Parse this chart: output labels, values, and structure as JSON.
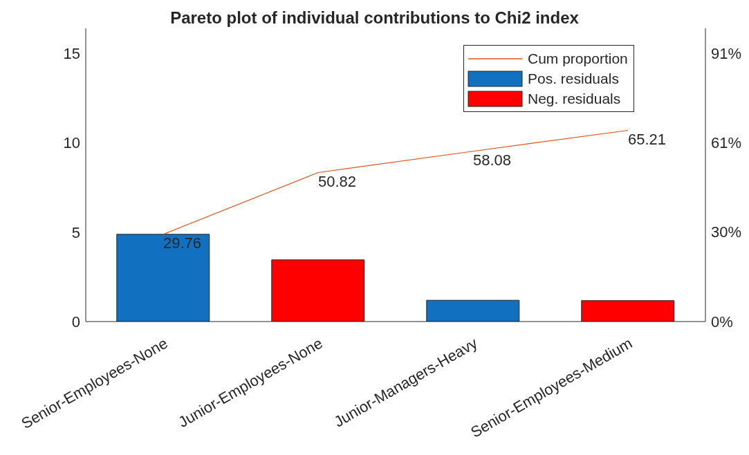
{
  "chart_data": {
    "type": "bar",
    "title": "Pareto plot of individual contributions to Chi2 index",
    "categories": [
      "Senior-Employees-None",
      "Junior-Employees-None",
      "Junior-Managers-Heavy",
      "Senior-Employees-Medium"
    ],
    "series": [
      {
        "name": "Cum proportion",
        "type": "line",
        "axis": "y2",
        "color": "#d95319",
        "values": [
          29.76,
          50.82,
          58.08,
          65.21
        ],
        "value_labels": [
          "29.76",
          "50.82",
          "58.08",
          "65.21"
        ]
      },
      {
        "name": "Pos. residuals",
        "color": "#1170c0",
        "values": [
          4.88,
          null,
          1.19,
          null
        ]
      },
      {
        "name": "Neg. residuals",
        "color": "#ff0000",
        "values": [
          null,
          3.45,
          null,
          1.17
        ]
      }
    ],
    "ylim": [
      0,
      16.4
    ],
    "yticks": [
      0,
      5,
      10,
      15
    ],
    "y2lim": [
      0,
      100
    ],
    "y2ticks": [
      {
        "value": 0,
        "label": "0%"
      },
      {
        "value": 30.5,
        "label": "30%"
      },
      {
        "value": 61,
        "label": "61%"
      },
      {
        "value": 91.5,
        "label": "91%"
      }
    ],
    "legend": "top right",
    "grid": false,
    "marker": "none"
  }
}
